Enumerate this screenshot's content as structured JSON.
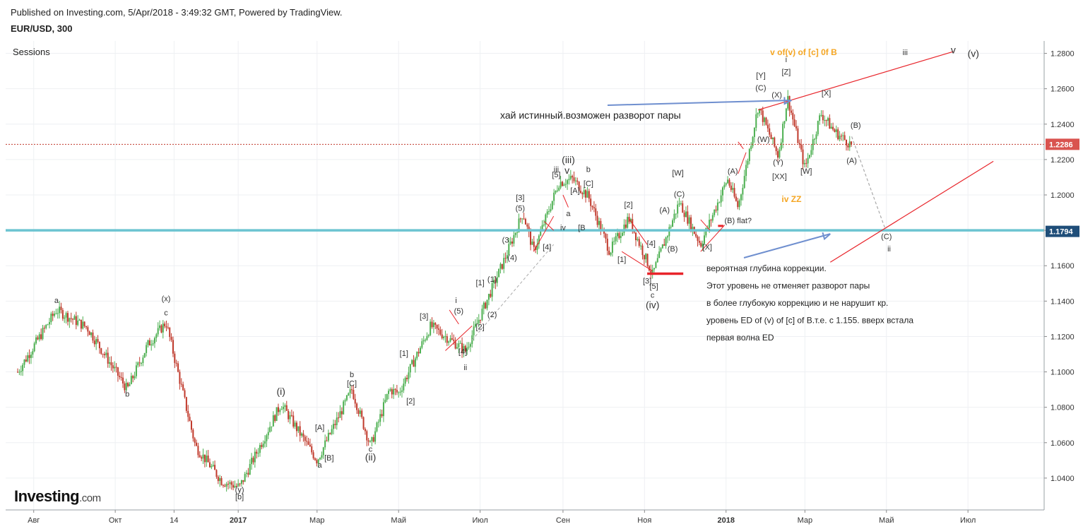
{
  "header": {
    "published": "Published on Investing.com, 5/Apr/2018 - 3:49:32 GMT, Powered by TradingView.",
    "symbol": "EUR/USD, 300"
  },
  "sessions_label": "Sessions",
  "logo": {
    "main": "Investing",
    "suffix": ".com"
  },
  "colors": {
    "up_candle": "#4caf50",
    "down_candle": "#c0392b",
    "trend_line": "#e8242a",
    "support_line": "#6cc4d1",
    "arrow": "#6f8fcf",
    "orange_label": "#f5a623",
    "last_price_bg": "#d9534f",
    "marker_price_bg": "#1f4e79"
  },
  "chart_data": {
    "type": "candlestick",
    "title": "",
    "x_ticks": [
      "Авг",
      "Окт",
      "14",
      "2017",
      "Мар",
      "Май",
      "Июл",
      "Сен",
      "Ноя",
      "2018",
      "Мар",
      "Май",
      "Июл"
    ],
    "y_ticks": [
      "1.2800",
      "1.2600",
      "1.2400",
      "1.2200",
      "1.2000",
      "1.1800",
      "1.1600",
      "1.1400",
      "1.1200",
      "1.1000",
      "1.0800",
      "1.0600",
      "1.0400"
    ],
    "ylim": [
      1.022,
      1.287
    ],
    "last_price": "1.2286",
    "horizontal_level": "1.1794",
    "price_path": [
      {
        "date": "2016-07-20",
        "price": 1.1
      },
      {
        "date": "2016-08-18",
        "price": 1.135
      },
      {
        "date": "2016-09-10",
        "price": 1.125
      },
      {
        "date": "2016-10-10",
        "price": 1.09
      },
      {
        "date": "2016-10-25",
        "price": 1.115
      },
      {
        "date": "2016-11-08",
        "price": 1.128
      },
      {
        "date": "2016-11-30",
        "price": 1.058
      },
      {
        "date": "2016-12-20",
        "price": 1.038
      },
      {
        "date": "2017-01-02",
        "price": 1.035
      },
      {
        "date": "2017-02-02",
        "price": 1.082
      },
      {
        "date": "2017-03-01",
        "price": 1.05
      },
      {
        "date": "2017-03-27",
        "price": 1.09
      },
      {
        "date": "2017-04-10",
        "price": 1.058
      },
      {
        "date": "2017-04-24",
        "price": 1.09
      },
      {
        "date": "2017-05-01",
        "price": 1.088
      },
      {
        "date": "2017-05-25",
        "price": 1.126
      },
      {
        "date": "2017-06-20",
        "price": 1.112
      },
      {
        "date": "2017-07-20",
        "price": 1.165
      },
      {
        "date": "2017-08-02",
        "price": 1.19
      },
      {
        "date": "2017-08-10",
        "price": 1.168
      },
      {
        "date": "2017-08-29",
        "price": 1.207
      },
      {
        "date": "2017-09-08",
        "price": 1.209
      },
      {
        "date": "2017-09-20",
        "price": 1.199
      },
      {
        "date": "2017-10-06",
        "price": 1.168
      },
      {
        "date": "2017-10-20",
        "price": 1.187
      },
      {
        "date": "2017-11-07",
        "price": 1.155
      },
      {
        "date": "2017-11-27",
        "price": 1.196
      },
      {
        "date": "2017-12-13",
        "price": 1.172
      },
      {
        "date": "2018-01-02",
        "price": 1.209
      },
      {
        "date": "2018-01-10",
        "price": 1.193
      },
      {
        "date": "2018-01-25",
        "price": 1.25
      },
      {
        "date": "2018-02-09",
        "price": 1.222
      },
      {
        "date": "2018-02-16",
        "price": 1.255
      },
      {
        "date": "2018-03-01",
        "price": 1.215
      },
      {
        "date": "2018-03-13",
        "price": 1.246
      },
      {
        "date": "2018-03-23",
        "price": 1.236
      },
      {
        "date": "2018-04-05",
        "price": 1.228
      }
    ],
    "projection": [
      {
        "date": "2018-04-05",
        "price": 1.233
      },
      {
        "date": "2018-04-30",
        "price": 1.181
      }
    ],
    "wave_labels": [
      {
        "text": "a",
        "date": "2016-08-18",
        "price": 1.139
      },
      {
        "text": "(x)",
        "date": "2016-11-08",
        "price": 1.14
      },
      {
        "text": "c",
        "date": "2016-11-08",
        "price": 1.132
      },
      {
        "text": "b",
        "date": "2016-10-10",
        "price": 1.086
      },
      {
        "text": "(i)",
        "date": "2017-02-02",
        "price": 1.087
      },
      {
        "text": "(y)",
        "date": "2017-01-02",
        "price": 1.032
      },
      {
        "text": "[b]",
        "date": "2017-01-02",
        "price": 1.028
      },
      {
        "text": "[A]",
        "date": "2017-03-03",
        "price": 1.067
      },
      {
        "text": "a",
        "date": "2017-03-03",
        "price": 1.046
      },
      {
        "text": "[B]",
        "date": "2017-03-10",
        "price": 1.05
      },
      {
        "text": "b",
        "date": "2017-03-27",
        "price": 1.097
      },
      {
        "text": "[C]",
        "date": "2017-03-27",
        "price": 1.092
      },
      {
        "text": "c",
        "date": "2017-04-10",
        "price": 1.055
      },
      {
        "text": "(ii)",
        "date": "2017-04-10",
        "price": 1.05
      },
      {
        "text": "[1]",
        "date": "2017-05-05",
        "price": 1.109
      },
      {
        "text": "[2]",
        "date": "2017-05-10",
        "price": 1.082
      },
      {
        "text": "[3]",
        "date": "2017-05-20",
        "price": 1.13
      },
      {
        "text": "[4]",
        "date": "2017-06-18",
        "price": 1.11
      },
      {
        "text": "(5)",
        "date": "2017-06-15",
        "price": 1.133
      },
      {
        "text": "i",
        "date": "2017-06-13",
        "price": 1.139
      },
      {
        "text": "ii",
        "date": "2017-06-20",
        "price": 1.101
      },
      {
        "text": "[2]",
        "date": "2017-07-01",
        "price": 1.124
      },
      {
        "text": "(2)",
        "date": "2017-07-10",
        "price": 1.131
      },
      {
        "text": "[1]",
        "date": "2017-07-01",
        "price": 1.149
      },
      {
        "text": "(1)",
        "date": "2017-07-10",
        "price": 1.151
      },
      {
        "text": "(3",
        "date": "2017-07-20",
        "price": 1.173
      },
      {
        "text": "(4)",
        "date": "2017-07-25",
        "price": 1.163
      },
      {
        "text": "(5)",
        "date": "2017-07-31",
        "price": 1.191
      },
      {
        "text": "[3]",
        "date": "2017-07-31",
        "price": 1.197
      },
      {
        "text": "[4]",
        "date": "2017-08-20",
        "price": 1.169
      },
      {
        "text": "[5]",
        "date": "2017-08-27",
        "price": 1.21
      },
      {
        "text": "iii",
        "date": "2017-08-27",
        "price": 1.213
      },
      {
        "text": "v",
        "date": "2017-09-04",
        "price": 1.212
      },
      {
        "text": "(iii)",
        "date": "2017-09-05",
        "price": 1.218
      },
      {
        "text": "b",
        "date": "2017-09-20",
        "price": 1.213
      },
      {
        "text": "[A]",
        "date": "2017-09-10",
        "price": 1.201
      },
      {
        "text": "[C]",
        "date": "2017-09-20",
        "price": 1.205
      },
      {
        "text": "a",
        "date": "2017-09-05",
        "price": 1.188
      },
      {
        "text": "iv",
        "date": "2017-09-01",
        "price": 1.18
      },
      {
        "text": "[B",
        "date": "2017-09-15",
        "price": 1.18
      },
      {
        "text": "[2]",
        "date": "2017-10-20",
        "price": 1.193
      },
      {
        "text": "[1]",
        "date": "2017-10-15",
        "price": 1.162
      },
      {
        "text": "[4]",
        "date": "2017-11-06",
        "price": 1.171
      },
      {
        "text": "[3]",
        "date": "2017-11-03",
        "price": 1.15
      },
      {
        "text": "[5]",
        "date": "2017-11-08",
        "price": 1.147
      },
      {
        "text": "c",
        "date": "2017-11-07",
        "price": 1.142
      },
      {
        "text": "(iv)",
        "date": "2017-11-07",
        "price": 1.136
      },
      {
        "text": "(A)",
        "date": "2017-11-16",
        "price": 1.19
      },
      {
        "text": "(B)",
        "date": "2017-11-22",
        "price": 1.168
      },
      {
        "text": "(C)",
        "date": "2017-11-27",
        "price": 1.199
      },
      {
        "text": "[W]",
        "date": "2017-11-26",
        "price": 1.211
      },
      {
        "text": "[X]",
        "date": "2017-12-18",
        "price": 1.169
      },
      {
        "text": "(B) flat?",
        "date": "2018-01-10",
        "price": 1.184
      },
      {
        "text": "(A)",
        "date": "2018-01-06",
        "price": 1.212
      },
      {
        "text": "(W)",
        "date": "2018-01-29",
        "price": 1.23
      },
      {
        "text": "[Y]",
        "date": "2018-01-27",
        "price": 1.266
      },
      {
        "text": "(C)",
        "date": "2018-01-27",
        "price": 1.259
      },
      {
        "text": "(X)",
        "date": "2018-02-08",
        "price": 1.255
      },
      {
        "text": "(Y)",
        "date": "2018-02-09",
        "price": 1.217
      },
      {
        "text": "[XX]",
        "date": "2018-02-10",
        "price": 1.209
      },
      {
        "text": "[W]",
        "date": "2018-03-02",
        "price": 1.212
      },
      {
        "text": "[X]",
        "date": "2018-03-17",
        "price": 1.256
      },
      {
        "text": "(B)",
        "date": "2018-04-08",
        "price": 1.238
      },
      {
        "text": "(A)",
        "date": "2018-04-05",
        "price": 1.218
      },
      {
        "text": "(C)",
        "date": "2018-05-01",
        "price": 1.175
      },
      {
        "text": "ii",
        "date": "2018-05-03",
        "price": 1.168
      },
      {
        "text": "[Z]",
        "date": "2018-02-15",
        "price": 1.268
      },
      {
        "text": "i",
        "date": "2018-02-15",
        "price": 1.275
      },
      {
        "text": "iii",
        "date": "2018-05-15",
        "price": 1.279
      },
      {
        "text": "v",
        "date": "2018-06-20",
        "price": 1.28
      },
      {
        "text": "(v)",
        "date": "2018-07-05",
        "price": 1.278
      }
    ],
    "orange_labels": [
      {
        "text": "v of(v) of [c] 0f B",
        "date": "2018-02-28",
        "price": 1.279
      },
      {
        "text": "iv ZZ",
        "date": "2018-02-19",
        "price": 1.196
      }
    ],
    "annotation_main": "хай истинный.возможен разворот пары",
    "annotation_notes": [
      "вероятная глубина коррекции.",
      "Этот уровень не отменяет разворот пары",
      "в более глубокую коррекцию и не нарушит кр.",
      "уровень ED of (v) of [c] of B.т.е. с 1.155. вверх встала",
      "первая волна ED"
    ],
    "trend_lines": [
      {
        "from": {
          "date": "2018-01-25",
          "price": 1.248
        },
        "to": {
          "date": "2018-06-20",
          "price": 1.281
        }
      },
      {
        "from": {
          "date": "2018-03-20",
          "price": 1.162
        },
        "to": {
          "date": "2018-07-20",
          "price": 1.219
        }
      }
    ],
    "grid": true,
    "legend": "none"
  }
}
